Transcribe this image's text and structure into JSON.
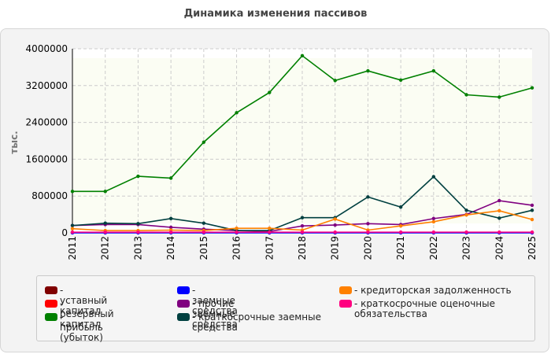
{
  "title": "Динамика изменения пассивов",
  "chart_data": {
    "type": "line",
    "ylabel": "тыс.",
    "xlabel": "",
    "x": [
      "2011",
      "2012",
      "2013",
      "2014",
      "2015",
      "2016",
      "2017",
      "2018",
      "2019",
      "2020",
      "2021",
      "2022",
      "2023",
      "2024",
      "2025"
    ],
    "ylim": [
      0,
      4000000
    ],
    "yticks": [
      "0",
      "800000",
      "1600000",
      "2400000",
      "3200000",
      "4000000"
    ],
    "yticks_values": [
      0,
      800000,
      1600000,
      2400000,
      3200000,
      4000000
    ],
    "grid": true,
    "legend_position": "bottom",
    "series": [
      {
        "name": "уставный капитал",
        "color": "#800000",
        "values": [
          10000,
          10000,
          10000,
          10000,
          10000,
          10000,
          10000,
          10000,
          10000,
          10000,
          10000,
          10000,
          10000,
          10000,
          10000
        ]
      },
      {
        "name": "резервный капитал",
        "color": "#ff0000",
        "values": [
          5000,
          5000,
          5000,
          5000,
          5000,
          5000,
          5000,
          5000,
          5000,
          5000,
          5000,
          5000,
          5000,
          5000,
          5000
        ]
      },
      {
        "name": "прибыль (убыток)",
        "color": "#008000",
        "values": [
          900000,
          900000,
          1230000,
          1190000,
          1970000,
          2610000,
          3050000,
          3850000,
          3310000,
          3520000,
          3320000,
          3520000,
          3000000,
          2950000,
          3150000
        ]
      },
      {
        "name": "заемные средства",
        "color": "#0000ff",
        "values": [
          0,
          0,
          0,
          0,
          0,
          0,
          0,
          0,
          0,
          0,
          0,
          0,
          0,
          0,
          0
        ]
      },
      {
        "name": "прочие заемные средства",
        "color": "#800080",
        "values": [
          160000,
          180000,
          180000,
          120000,
          80000,
          50000,
          30000,
          150000,
          170000,
          200000,
          180000,
          310000,
          400000,
          700000,
          600000
        ]
      },
      {
        "name": "краткосрочные заемные средства",
        "color": "#004040",
        "values": [
          160000,
          210000,
          200000,
          310000,
          210000,
          50000,
          50000,
          330000,
          330000,
          780000,
          560000,
          1220000,
          490000,
          320000,
          490000
        ]
      },
      {
        "name": "кредиторская задолженность",
        "color": "#ff8000",
        "values": [
          90000,
          50000,
          50000,
          60000,
          50000,
          100000,
          100000,
          60000,
          300000,
          60000,
          150000,
          240000,
          390000,
          480000,
          290000
        ]
      },
      {
        "name": "краткосрочные оценочные обязательства",
        "color": "#ff0080",
        "values": [
          15000,
          15000,
          15000,
          15000,
          15000,
          15000,
          15000,
          15000,
          15000,
          15000,
          15000,
          15000,
          15000,
          15000,
          15000
        ]
      }
    ]
  }
}
